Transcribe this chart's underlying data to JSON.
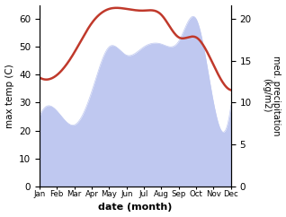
{
  "months": [
    "Jan",
    "Feb",
    "Mar",
    "Apr",
    "May",
    "Jun",
    "Jul",
    "Aug",
    "Sep",
    "Oct",
    "Nov",
    "Dec"
  ],
  "x": [
    1,
    2,
    3,
    4,
    5,
    6,
    7,
    8,
    9,
    10,
    11,
    12
  ],
  "temp": [
    25,
    27,
    22,
    34,
    50,
    47,
    50,
    51,
    52,
    60,
    30,
    29
  ],
  "precip": [
    13,
    13.3,
    16,
    19.5,
    21.2,
    21.2,
    21.0,
    20.5,
    17.8,
    17.8,
    14.5,
    11.5
  ],
  "temp_fill_color": "#bfc8f0",
  "precip_color": "#c0392b",
  "left_ylim": [
    0,
    65
  ],
  "right_ylim": [
    0,
    21.67
  ],
  "left_yticks": [
    0,
    10,
    20,
    30,
    40,
    50,
    60
  ],
  "right_yticks": [
    0,
    5,
    10,
    15,
    20
  ],
  "xlabel": "date (month)",
  "ylabel_left": "max temp (C)",
  "ylabel_right": "med. precipitation\n(kg/m2)",
  "bg_color": "#ffffff"
}
